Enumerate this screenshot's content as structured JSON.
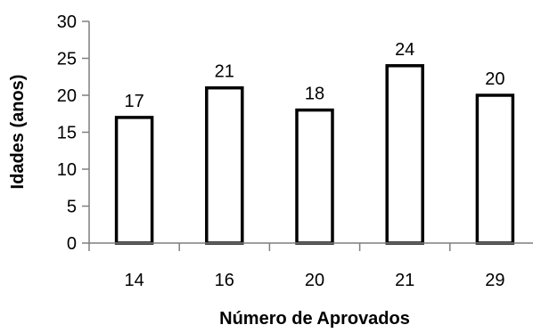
{
  "chart_data": {
    "type": "bar",
    "categories": [
      "14",
      "16",
      "20",
      "21",
      "29"
    ],
    "values": [
      17,
      21,
      18,
      24,
      20
    ],
    "data_labels": [
      "17",
      "21",
      "18",
      "24",
      "20"
    ],
    "title": "",
    "xlabel": "Número de Aprovados",
    "ylabel": "Idades  (anos)",
    "ylim": [
      0,
      30
    ],
    "yticks": [
      0,
      5,
      10,
      15,
      20,
      25,
      30
    ],
    "ytick_labels": [
      "0",
      "5",
      "10",
      "15",
      "20",
      "25",
      "30"
    ],
    "grid": false,
    "legend": "none",
    "bar_fill": "#ffffff",
    "bar_stroke": "#000000"
  }
}
